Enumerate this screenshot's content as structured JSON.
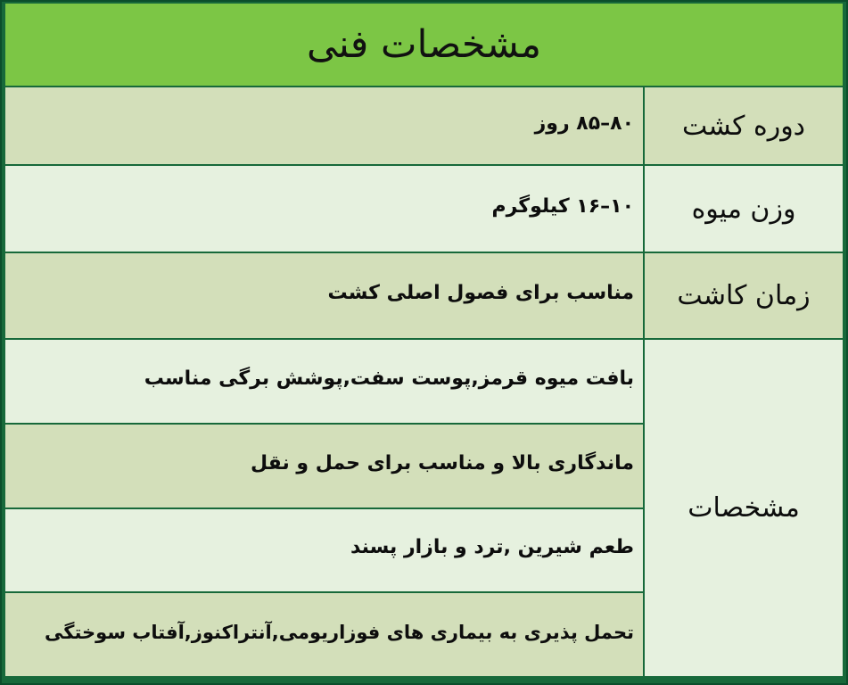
{
  "title": "مشخصات فنی",
  "colors": {
    "frame_border": "#17693a",
    "header_bg": "#7cc645",
    "row_dark_bg": "#d3dfba",
    "row_light_bg": "#e6f1df",
    "text": "#0d0d0d"
  },
  "table": {
    "rows": [
      {
        "label": "دوره کشت",
        "value": "۸۰–۸۵ روز"
      },
      {
        "label": "وزن میوه",
        "value": "۱۰–۱۶ کیلوگرم"
      },
      {
        "label": "زمان کاشت",
        "value": "مناسب برای فصول اصلی کشت"
      }
    ],
    "merged": {
      "label": "مشخصات",
      "values": [
        "بافت میوه قرمز,پوست سفت,پوشش برگی مناسب",
        "ماندگاری بالا و مناسب برای حمل و نقل",
        "طعم شیرین ,ترد و بازار پسند",
        "تحمل پذیری به بیماری های فوزاریومی,آنتراکنوز,آفتاب سوختگی"
      ]
    }
  }
}
